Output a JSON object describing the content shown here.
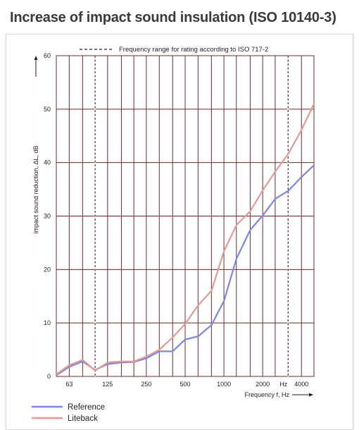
{
  "header": {
    "title": "Increase of impact sound insulation (ISO 10140-3)"
  },
  "chart_data": {
    "type": "line",
    "title": "Increase of impact sound insulation (ISO 10140-3)",
    "xlabel": "Frequency  f, Hz",
    "x_unit": "Hz",
    "ylabel": "impact sound reduction, ΔL, dB",
    "x_scale": "log",
    "xlim": [
      50,
      5000
    ],
    "ylim": [
      0,
      60
    ],
    "y_ticks": [
      0,
      10,
      20,
      30,
      40,
      50,
      60
    ],
    "x_ticks": [
      {
        "value": 63,
        "label": "63"
      },
      {
        "value": 125,
        "label": "125"
      },
      {
        "value": 250,
        "label": "250"
      },
      {
        "value": 500,
        "label": "500"
      },
      {
        "value": 1000,
        "label": "1000"
      },
      {
        "value": 2000,
        "label": "2000"
      },
      {
        "value": 4000,
        "label": "4000"
      }
    ],
    "gridlines_x": [
      50,
      63,
      80,
      100,
      125,
      160,
      200,
      250,
      315,
      400,
      500,
      630,
      800,
      1000,
      1250,
      1600,
      2000,
      2500,
      3150,
      4000,
      5000
    ],
    "rating_range": [
      100,
      3150
    ],
    "rating_range_label": "Frequency range for rating according to ISO 717-2",
    "grid": true,
    "legend_position": "bottom-left",
    "x": [
      50,
      63,
      80,
      100,
      125,
      160,
      200,
      250,
      315,
      400,
      500,
      630,
      800,
      1000,
      1250,
      1600,
      2000,
      2500,
      3150,
      4000,
      5000
    ],
    "series": [
      {
        "name": "Reference",
        "color": "#7b84e8",
        "values": [
          0.2,
          1.8,
          2.8,
          1.2,
          2.3,
          2.6,
          2.7,
          3.4,
          4.7,
          4.7,
          6.9,
          7.5,
          9.6,
          14.1,
          22,
          27.4,
          30.1,
          33.2,
          34.7,
          37.3,
          39.5
        ]
      },
      {
        "name": "Liteback",
        "color": "#e39a94",
        "values": [
          0.4,
          2.1,
          3.1,
          1.1,
          2.6,
          2.8,
          2.8,
          3.7,
          5,
          7.3,
          9.8,
          13.3,
          16,
          23.4,
          28.3,
          30.9,
          34.8,
          38.3,
          41.6,
          46.1,
          51
        ]
      }
    ]
  }
}
